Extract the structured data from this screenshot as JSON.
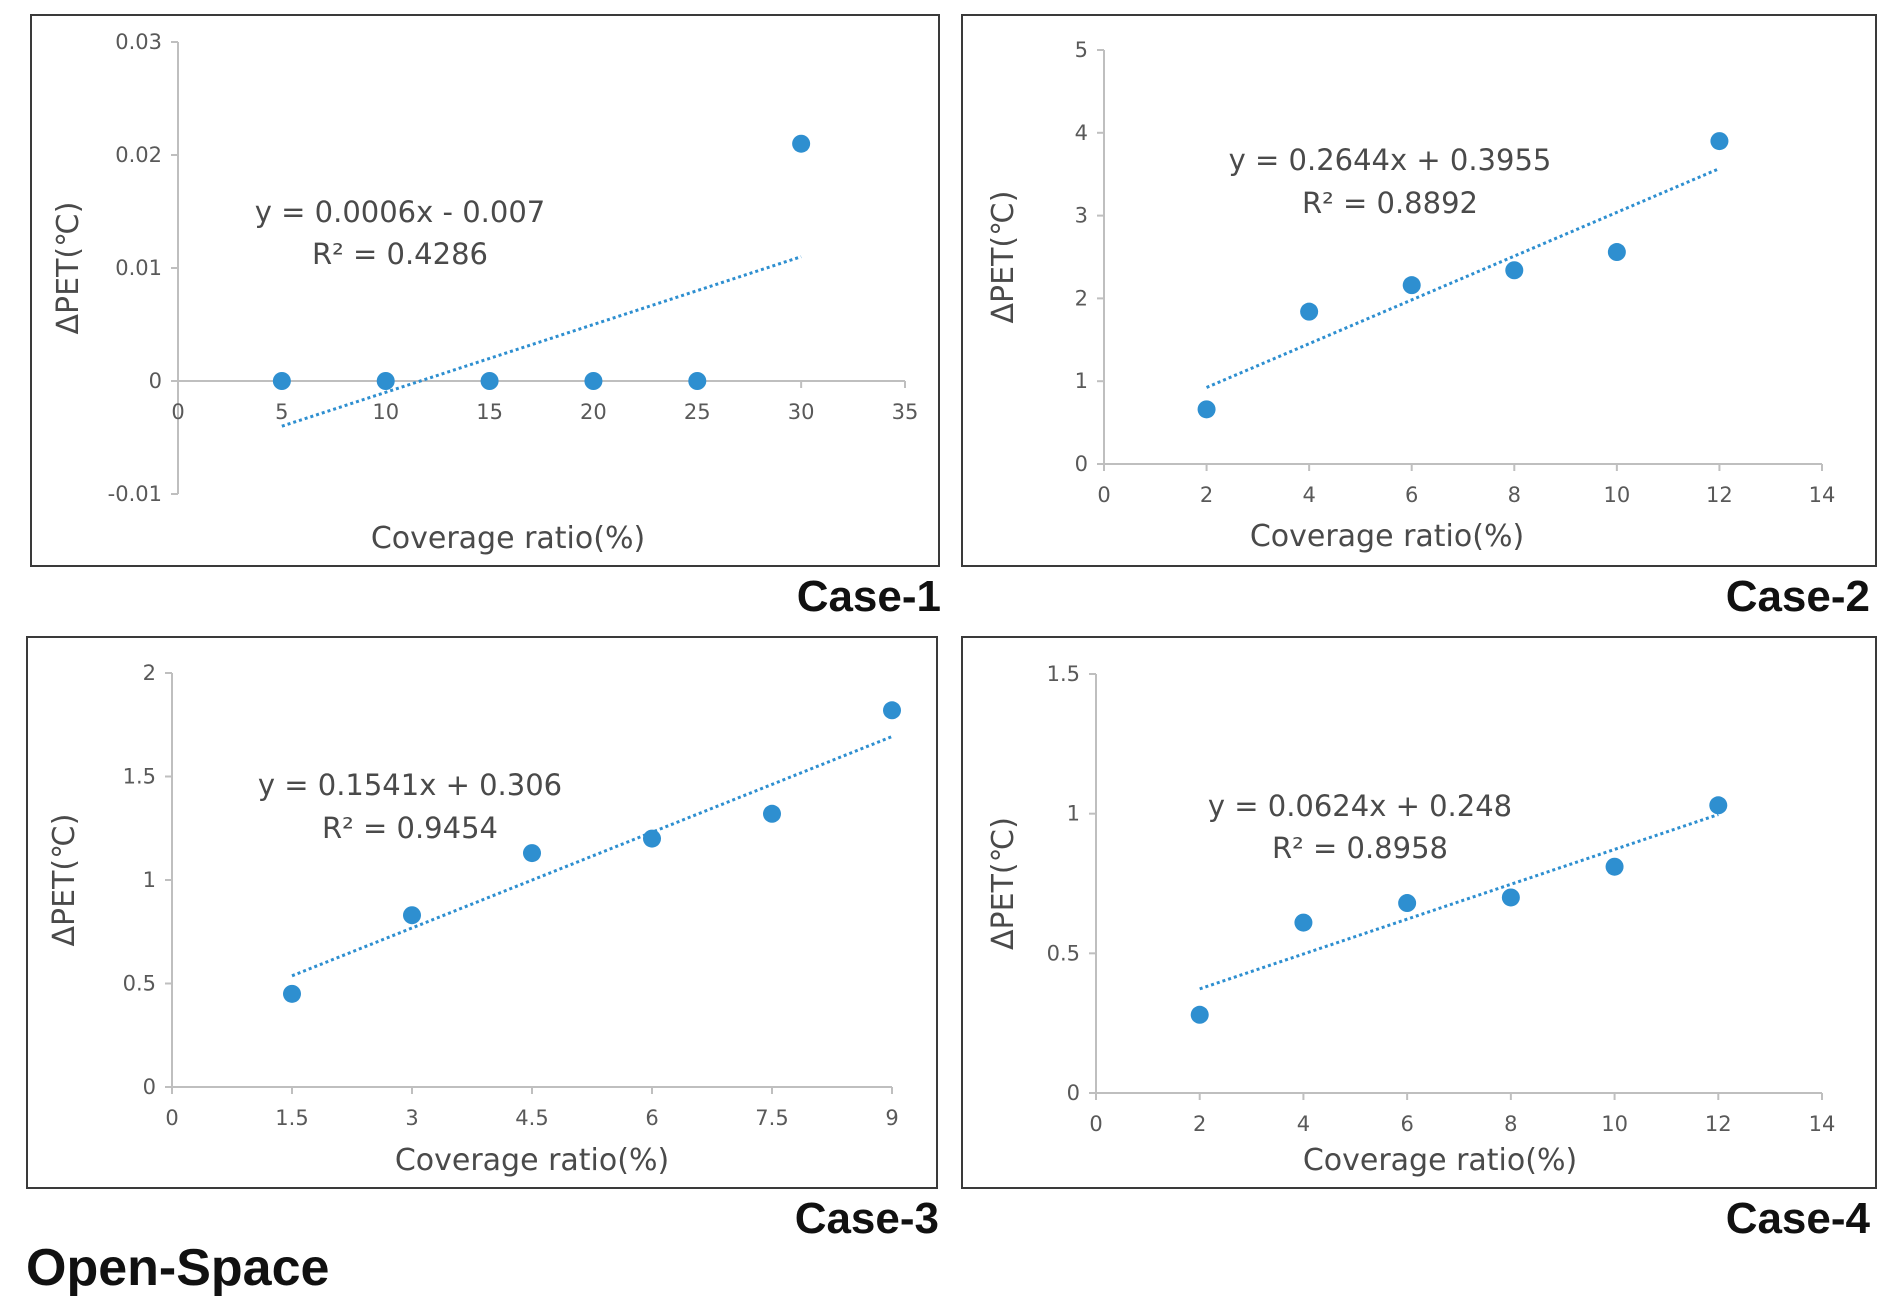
{
  "figure": {
    "footer_label": "Open-Space"
  },
  "colors": {
    "point": "#2e8fd0",
    "trendline": "#2e8fd0",
    "axis": "#bfbfbf",
    "frame": "#3a3a3a"
  },
  "chart_data": [
    {
      "type": "scatter",
      "case_label": "Case-1",
      "xlabel": "Coverage ratio(%)",
      "ylabel": "ΔPET(℃)",
      "x": [
        5,
        10,
        15,
        20,
        25,
        30
      ],
      "y": [
        0,
        0,
        0,
        0,
        0,
        0.021
      ],
      "xlim": [
        0,
        35
      ],
      "ylim": [
        -0.01,
        0.03
      ],
      "xticks": [
        0,
        5,
        10,
        15,
        20,
        25,
        30,
        35
      ],
      "xtick_labels": [
        "0",
        "5",
        "10",
        "15",
        "20",
        "25",
        "30",
        "35"
      ],
      "yticks": [
        -0.01,
        0,
        0.01,
        0.02,
        0.03
      ],
      "ytick_labels": [
        "-0.01",
        "0",
        "0.01",
        "0.02",
        "0.03"
      ],
      "x_axis_at_zero": true,
      "trendline": {
        "slope": 0.0006,
        "intercept": -0.007,
        "x_range": [
          5,
          30
        ]
      },
      "equation": "y = 0.0006x - 0.007",
      "r2": "R² = 0.4286"
    },
    {
      "type": "scatter",
      "case_label": "Case-2",
      "xlabel": "Coverage ratio(%)",
      "ylabel": "ΔPET(℃)",
      "x": [
        2,
        4,
        6,
        8,
        10,
        12
      ],
      "y": [
        0.66,
        1.84,
        2.16,
        2.34,
        2.56,
        3.9
      ],
      "xlim": [
        0,
        14
      ],
      "ylim": [
        0,
        5
      ],
      "xticks": [
        0,
        2,
        4,
        6,
        8,
        10,
        12,
        14
      ],
      "xtick_labels": [
        "0",
        "2",
        "4",
        "6",
        "8",
        "10",
        "12",
        "14"
      ],
      "yticks": [
        0,
        1,
        2,
        3,
        4,
        5
      ],
      "ytick_labels": [
        "0",
        "1",
        "2",
        "3",
        "4",
        "5"
      ],
      "x_axis_at_zero": false,
      "trendline": {
        "slope": 0.2644,
        "intercept": 0.3955,
        "x_range": [
          2,
          12
        ]
      },
      "equation": "y = 0.2644x + 0.3955",
      "r2": "R² = 0.8892"
    },
    {
      "type": "scatter",
      "case_label": "Case-3",
      "xlabel": "Coverage ratio(%)",
      "ylabel": "ΔPET(℃)",
      "x": [
        1.5,
        3,
        4.5,
        6,
        7.5,
        9
      ],
      "y": [
        0.45,
        0.83,
        1.13,
        1.2,
        1.32,
        1.82
      ],
      "xlim": [
        0,
        9
      ],
      "ylim": [
        0,
        2
      ],
      "xticks": [
        0,
        1.5,
        3,
        4.5,
        6,
        7.5,
        9
      ],
      "xtick_labels": [
        "0",
        "1.5",
        "3",
        "4.5",
        "6",
        "7.5",
        "9"
      ],
      "yticks": [
        0,
        0.5,
        1,
        1.5,
        2
      ],
      "ytick_labels": [
        "0",
        "0.5",
        "1",
        "1.5",
        "2"
      ],
      "x_axis_at_zero": false,
      "trendline": {
        "slope": 0.1541,
        "intercept": 0.306,
        "x_range": [
          1.5,
          9
        ]
      },
      "equation": "y = 0.1541x + 0.306",
      "r2": "R² = 0.9454"
    },
    {
      "type": "scatter",
      "case_label": "Case-4",
      "xlabel": "Coverage ratio(%)",
      "ylabel": "ΔPET(℃)",
      "x": [
        2,
        4,
        6,
        8,
        10,
        12
      ],
      "y": [
        0.28,
        0.61,
        0.68,
        0.7,
        0.81,
        1.03
      ],
      "xlim": [
        0,
        14
      ],
      "ylim": [
        0,
        1.5
      ],
      "xticks": [
        0,
        2,
        4,
        6,
        8,
        10,
        12,
        14
      ],
      "xtick_labels": [
        "0",
        "2",
        "4",
        "6",
        "8",
        "10",
        "12",
        "14"
      ],
      "yticks": [
        0,
        0.5,
        1,
        1.5
      ],
      "ytick_labels": [
        "0",
        "0.5",
        "1",
        "1.5"
      ],
      "x_axis_at_zero": false,
      "trendline": {
        "slope": 0.0624,
        "intercept": 0.248,
        "x_range": [
          2,
          12
        ]
      },
      "equation": "y = 0.0624x + 0.248",
      "r2": "R² = 0.8958"
    }
  ]
}
